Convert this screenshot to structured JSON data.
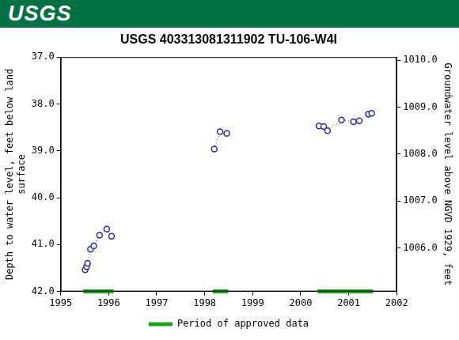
{
  "header": {
    "logo": "USGS"
  },
  "chart_data": {
    "type": "line",
    "title": "USGS 403313081311902 TU-106-W4I",
    "y_label": [
      "Depth to water level, feet below land",
      "surface"
    ],
    "y2_label": "Groundwater level above NGVD 1929, feet",
    "xlim": [
      1995,
      2002
    ],
    "xticks": [
      1995,
      1996,
      1997,
      1998,
      1999,
      2000,
      2001,
      2002
    ],
    "ylim": [
      42,
      37
    ],
    "yticks": [
      {
        "value": 37,
        "label": "37.0"
      },
      {
        "value": 38,
        "label": "38.0"
      },
      {
        "value": 39,
        "label": "39.0"
      },
      {
        "value": 40,
        "label": "40.0"
      },
      {
        "value": 41,
        "label": "41.0"
      },
      {
        "value": 42,
        "label": "42.0"
      }
    ],
    "y2lim": [
      1005.07,
      1010.07
    ],
    "y2ticks": [
      {
        "value": 1006,
        "label": "1006.0"
      },
      {
        "value": 1007,
        "label": "1007.0"
      },
      {
        "value": 1008,
        "label": "1008.0"
      },
      {
        "value": 1009,
        "label": "1009.0"
      },
      {
        "value": 1010,
        "label": "1010.0"
      }
    ],
    "grid": false,
    "legend": "bottom",
    "series": [
      {
        "color": "#2a2aa8",
        "marker": "circle",
        "line_style": "dotted",
        "x": [
          1995.51,
          1995.54,
          1995.56,
          1995.62,
          1995.69,
          1995.81,
          1995.96,
          1996.06
        ],
        "values": [
          41.54,
          41.47,
          41.4,
          41.1,
          41.03,
          40.8,
          40.67,
          40.82
        ]
      },
      {
        "color": "#2a2aa8",
        "marker": "circle",
        "line_style": "dotted",
        "x": [
          1998.2,
          1998.32,
          1998.46
        ],
        "values": [
          38.96,
          38.59,
          38.63
        ]
      },
      {
        "color": "#2a2aa8",
        "marker": "circle",
        "line_style": "dotted",
        "x": [
          2000.38,
          2000.48,
          2000.56,
          2000.85,
          2001.1,
          2001.22,
          2001.41,
          2001.48
        ],
        "values": [
          38.47,
          38.48,
          38.57,
          38.34,
          38.38,
          38.36,
          38.22,
          38.2
        ]
      },
      {
        "name": "Period of approved data",
        "type": "period",
        "color": "#22a022",
        "periods": [
          [
            1995.47,
            1996.1
          ],
          [
            1998.17,
            1998.49
          ],
          [
            2000.35,
            2001.51
          ]
        ]
      }
    ]
  }
}
